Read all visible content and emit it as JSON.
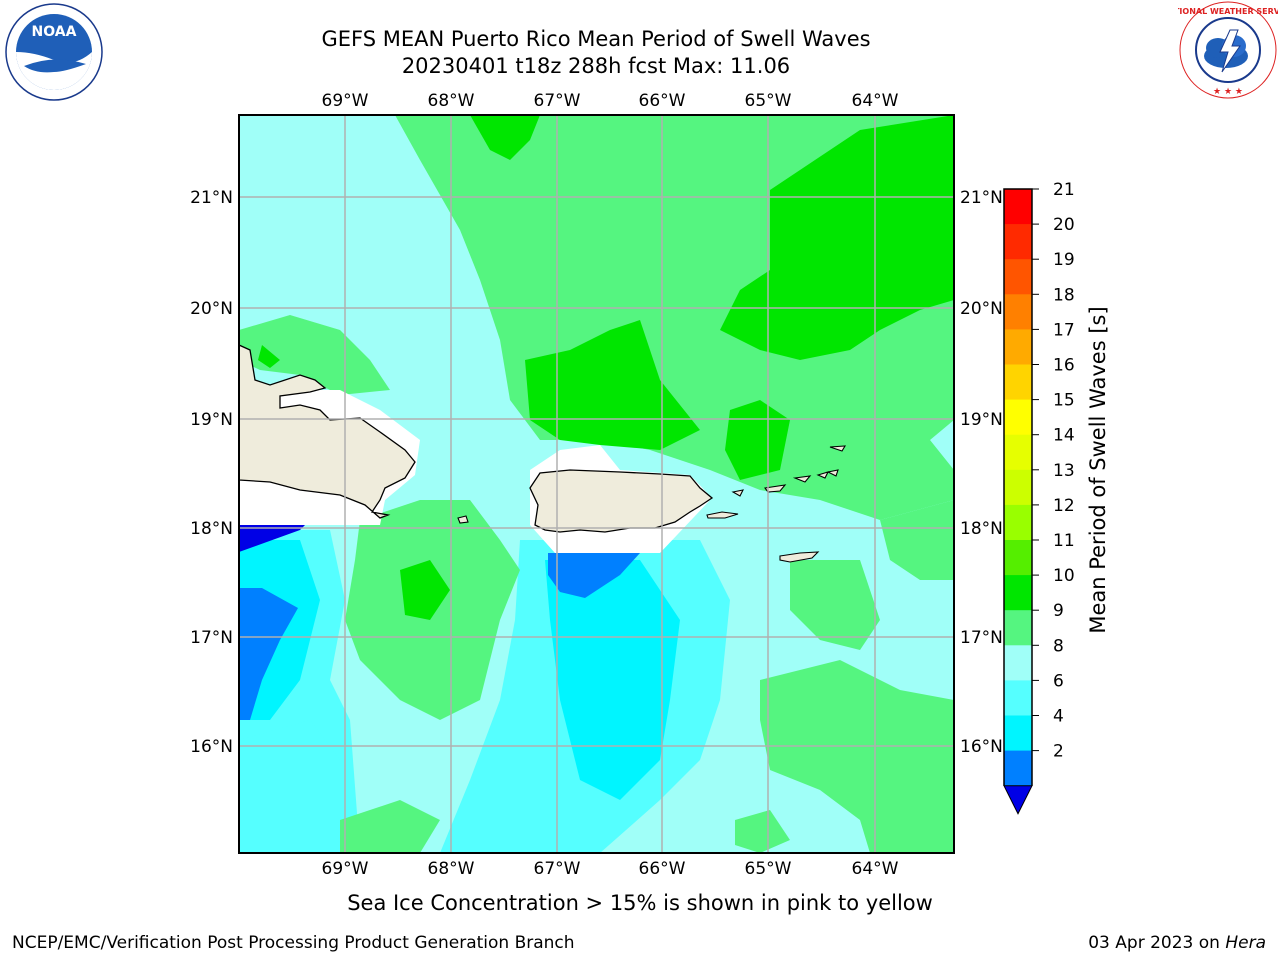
{
  "title_line1": "GEFS MEAN Puerto Rico Mean Period of Swell Waves",
  "title_line2": "20230401 t18z 288h fcst   Max: 11.06",
  "map": {
    "lon_labels": [
      "69°W",
      "68°W",
      "67°W",
      "66°W",
      "65°W",
      "64°W"
    ],
    "lat_labels": [
      "21°N",
      "20°N",
      "19°N",
      "18°N",
      "17°N",
      "16°N"
    ],
    "land_color": "#efecdc",
    "grid_color": "#b0b0b0"
  },
  "colorbar": {
    "label": "Mean Period of Swell Waves [s]",
    "ticks": [
      "21",
      "20",
      "19",
      "18",
      "17",
      "16",
      "15",
      "14",
      "13",
      "12",
      "11",
      "10",
      "9",
      "8",
      "6",
      "4",
      "2"
    ],
    "colors": [
      "#ff0000",
      "#ff2a00",
      "#ff5500",
      "#ff8000",
      "#ffaa00",
      "#ffd400",
      "#ffff00",
      "#e6ff00",
      "#ccff00",
      "#99ff00",
      "#55ee00",
      "#00e600",
      "#55f580",
      "#a0fff8",
      "#55ffff",
      "#00f5ff",
      "#0080ff"
    ],
    "under_color": "#0000e6"
  },
  "note": "Sea Ice Concentration > 15% is shown in pink to yellow",
  "footer_left": "NCEP/EMC/Verification Post Processing Product Generation Branch",
  "footer_date": "03 Apr 2023 on",
  "footer_host": "Hera",
  "logos": {
    "noaa_text": "NOAA",
    "nws_text": "NATIONAL WEATHER SERVICE"
  }
}
